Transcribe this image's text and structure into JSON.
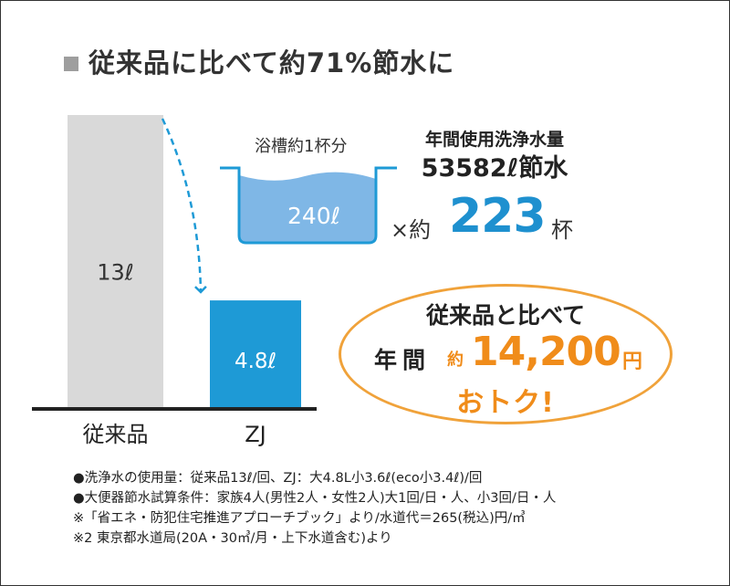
{
  "title": "従来品に比べて約71%節水に",
  "chart_data": {
    "type": "bar",
    "categories": [
      "従来品",
      "ZJ"
    ],
    "values": [
      13,
      4.8
    ],
    "data_labels": [
      "13ℓ",
      "4.8ℓ"
    ],
    "xlabel": "",
    "ylabel": "",
    "ylim": [
      0,
      13
    ],
    "grid": false,
    "colors": [
      "#d9d9d9",
      "#1e9ad6"
    ],
    "annotation": "dashed arrow from 従来品 bar to ZJ bar"
  },
  "tub": {
    "label": "浴槽約1杯分",
    "volume": "240ℓ",
    "times_prefix": "×約",
    "times_value": "223",
    "times_unit": "杯",
    "fill_color": "#7fb7e6",
    "outline_color": "#1e9ad6"
  },
  "annual": {
    "label": "年間使用洗浄水量",
    "value": "53582ℓ節水"
  },
  "savings": {
    "line1": "従来品と比べて",
    "yearly": "年間",
    "approx": "約",
    "amount": "14,200",
    "unit": "円",
    "line3": "おトク!",
    "border_color": "#f0a23a",
    "text_color": "#f08c1a"
  },
  "notes": [
    "●洗浄水の使用量：従来品13ℓ/回、ZJ：大4.8L小3.6ℓ(eco小3.4ℓ)/回",
    "●大便器節水試算条件：家族4人(男性2人・女性2人)大1回/日・人、小3回/日・人",
    "※「省エネ・防犯住宅推進アプローチブック」より/水道代＝265(税込)円/㎥",
    "※2 東京都水道局(20A・30㎥/月・上下水道含む)より"
  ]
}
